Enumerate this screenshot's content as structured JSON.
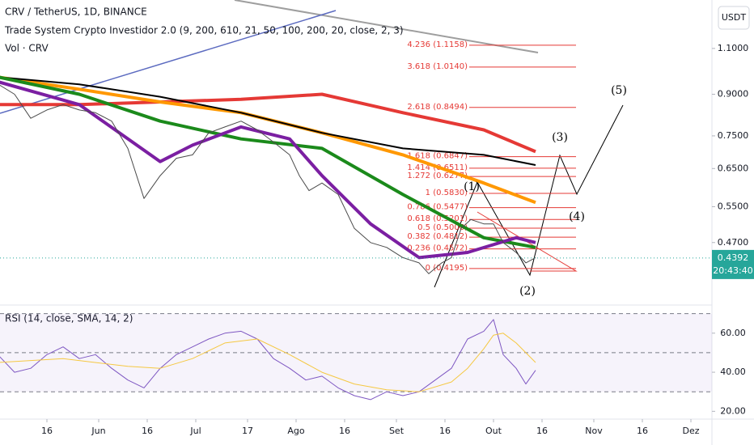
{
  "currency": "USDT",
  "chart_data": [
    {
      "type": "line",
      "title": "CRV / TetherUS, 1D, BINANCE",
      "subtitles": [
        "Trade System Crypto Investidor 2.0 (9, 200, 610, 21, 50, 100, 200, 20, close, 2, 3)",
        "Vol · CRV"
      ],
      "yscale": "log",
      "ylim": [
        0.36,
        1.36
      ],
      "yticks": [
        {
          "value": 1.1,
          "label": "1.1000"
        },
        {
          "value": 0.9,
          "label": "0.9000"
        },
        {
          "value": 0.75,
          "label": "0.7500"
        },
        {
          "value": 0.65,
          "label": "0.6500"
        },
        {
          "value": 0.55,
          "label": "0.5500"
        },
        {
          "value": 0.47,
          "label": "0.4700"
        }
      ],
      "xlim": [
        0.5,
        220.5
      ],
      "xticks": [
        {
          "value": 15,
          "label": "16"
        },
        {
          "value": 31,
          "label": "Jun"
        },
        {
          "value": 46,
          "label": "16"
        },
        {
          "value": 61,
          "label": "Jul"
        },
        {
          "value": 77,
          "label": "17"
        },
        {
          "value": 92,
          "label": "Ago"
        },
        {
          "value": 107,
          "label": "16"
        },
        {
          "value": 123,
          "label": "Set"
        },
        {
          "value": 138,
          "label": "16"
        },
        {
          "value": 153,
          "label": "Out"
        },
        {
          "value": 168,
          "label": "16"
        },
        {
          "value": 184,
          "label": "Nov"
        },
        {
          "value": 199,
          "label": "16"
        },
        {
          "value": 214,
          "label": "Dez"
        }
      ],
      "last_price": {
        "value": 0.4392,
        "label": "0.4392"
      },
      "countdown": "20:43:40",
      "series": [
        {
          "color": "#e53935",
          "width": 4,
          "x": [
            0,
            25,
            50,
            75,
            100,
            125,
            150,
            166
          ],
          "values": [
            0.86,
            0.86,
            0.87,
            0.88,
            0.9,
            0.83,
            0.77,
            0.7
          ]
        },
        {
          "color": "#ff9800",
          "width": 4,
          "x": [
            0,
            25,
            50,
            75,
            100,
            125,
            150,
            166
          ],
          "values": [
            0.97,
            0.92,
            0.87,
            0.83,
            0.76,
            0.69,
            0.61,
            0.56
          ]
        },
        {
          "color": "#000000",
          "width": 2,
          "x": [
            0,
            25,
            50,
            75,
            100,
            125,
            150,
            166
          ],
          "values": [
            0.97,
            0.94,
            0.89,
            0.83,
            0.76,
            0.71,
            0.69,
            0.66
          ]
        },
        {
          "color": "#1b8a1b",
          "width": 4,
          "x": [
            0,
            25,
            50,
            75,
            100,
            125,
            150,
            166
          ],
          "values": [
            0.97,
            0.9,
            0.8,
            0.74,
            0.71,
            0.58,
            0.48,
            0.46
          ]
        },
        {
          "color": "#7b1fa2",
          "width": 4,
          "x": [
            0,
            25,
            50,
            60,
            75,
            90,
            100,
            115,
            130,
            145,
            160,
            166
          ],
          "values": [
            0.95,
            0.86,
            0.67,
            0.72,
            0.78,
            0.74,
            0.63,
            0.51,
            0.44,
            0.45,
            0.48,
            0.47
          ]
        },
        {
          "color": "#4a4a4a",
          "width": 1,
          "x": [
            0,
            5,
            10,
            15,
            20,
            25,
            30,
            35,
            40,
            45,
            50,
            55,
            60,
            65,
            70,
            75,
            80,
            85,
            90,
            93,
            96,
            100,
            105,
            110,
            115,
            120,
            125,
            130,
            133,
            137,
            140,
            143,
            146,
            150,
            153,
            156,
            160,
            163,
            166
          ],
          "values": [
            0.94,
            0.9,
            0.81,
            0.84,
            0.86,
            0.84,
            0.83,
            0.8,
            0.71,
            0.57,
            0.63,
            0.68,
            0.69,
            0.76,
            0.78,
            0.8,
            0.77,
            0.73,
            0.69,
            0.63,
            0.59,
            0.61,
            0.58,
            0.5,
            0.47,
            0.46,
            0.44,
            0.43,
            0.41,
            0.43,
            0.44,
            0.5,
            0.52,
            0.51,
            0.51,
            0.47,
            0.45,
            0.43,
            0.44
          ]
        }
      ],
      "fib_levels": [
        {
          "label": "4.236 (1.1158)",
          "price": 1.1158
        },
        {
          "label": "3.618 (1.0140)",
          "price": 1.014
        },
        {
          "label": "2.618 (0.8494)",
          "price": 0.8494
        },
        {
          "label": "1.618 (0.6847)",
          "price": 0.6847
        },
        {
          "label": "1.414 (0.6511)",
          "price": 0.6511
        },
        {
          "label": "1.272 (0.6277)",
          "price": 0.6277
        },
        {
          "label": "1 (0.5830)",
          "price": 0.583
        },
        {
          "label": "0.786 (0.5477)",
          "price": 0.5477
        },
        {
          "label": "0.618 (0.5201)",
          "price": 0.5201
        },
        {
          "label": "0.5 (0.5006)",
          "price": 0.5006
        },
        {
          "label": "0.382 (0.4812)",
          "price": 0.4812
        },
        {
          "label": "0.236 (0.4572)",
          "price": 0.4572
        },
        {
          "label": "0 (0.4195)",
          "price": 0.4195
        }
      ],
      "annotations": [
        "(1)",
        "(2)",
        "(3)",
        "(4)",
        "(5)"
      ]
    },
    {
      "type": "line",
      "title": "RSI (14, close, SMA, 14, 2)",
      "ylim": [
        16,
        74
      ],
      "yticks": [
        {
          "value": 60,
          "label": "60.00"
        },
        {
          "value": 40,
          "label": "40.00"
        },
        {
          "value": 20,
          "label": "20.00"
        }
      ],
      "band_levels": [
        70,
        50,
        30
      ],
      "series": [
        {
          "color": "#7e57c2",
          "width": 1,
          "x": [
            0,
            5,
            10,
            15,
            20,
            25,
            30,
            35,
            40,
            45,
            50,
            55,
            60,
            65,
            70,
            75,
            80,
            85,
            90,
            95,
            100,
            105,
            110,
            115,
            120,
            125,
            130,
            135,
            140,
            145,
            150,
            153,
            156,
            160,
            163,
            166
          ],
          "values": [
            48.7,
            40,
            42,
            49,
            53,
            47,
            49,
            42,
            36,
            32,
            42,
            49,
            53,
            57,
            60,
            61,
            57,
            47,
            42,
            36,
            38,
            32,
            28,
            26,
            30,
            28,
            30,
            36,
            42,
            57,
            61,
            67,
            49,
            42,
            34,
            41
          ]
        },
        {
          "color": "#f5c842",
          "width": 1,
          "x": [
            0,
            20,
            40,
            50,
            60,
            70,
            80,
            90,
            100,
            110,
            120,
            130,
            140,
            145,
            150,
            153,
            156,
            160,
            166
          ],
          "values": [
            45,
            47,
            43,
            42,
            47,
            55,
            57,
            49,
            40,
            34,
            31,
            30,
            35,
            42,
            52,
            59,
            60,
            55,
            45
          ]
        }
      ]
    }
  ]
}
